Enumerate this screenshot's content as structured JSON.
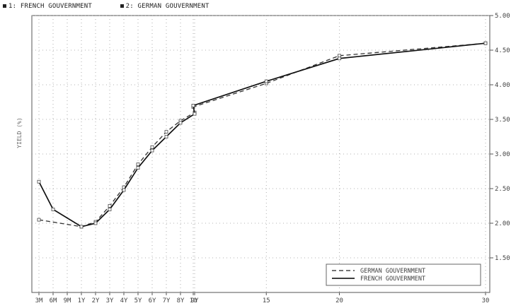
{
  "top_legend": [
    {
      "marker": "1",
      "name": "FRENCH GOUVERNMENT"
    },
    {
      "marker": "2",
      "name": "GERMAN GOUVERNMENT"
    }
  ],
  "chart_data": {
    "type": "line",
    "title": "",
    "xlabel": "",
    "ylabel": "YIELD (%)",
    "x_tick_labels": [
      "3M",
      "6M",
      "9M",
      "1Y",
      "2Y",
      "3Y",
      "4Y",
      "5Y",
      "6Y",
      "7Y",
      "8Y",
      "9Y",
      "10",
      "15",
      "20",
      "30"
    ],
    "x_tick_maturities": [
      0.25,
      0.5,
      0.75,
      1,
      2,
      3,
      4,
      5,
      6,
      7,
      8,
      9,
      10,
      15,
      20,
      30
    ],
    "y_tick_labels": [
      "5.00",
      "4.50",
      "4.00",
      "3.50",
      "3.00",
      "2.50",
      "2.00",
      "1.50"
    ],
    "ylim": [
      1.0,
      5.0
    ],
    "y_axis_position": "right",
    "grid": true,
    "legend_position": "bottom-right",
    "series": [
      {
        "name": "GERMAN GOUVERNMENT",
        "style": "dashed",
        "x": [
          0.25,
          1,
          2,
          3,
          4,
          5,
          6,
          7,
          8,
          9,
          10,
          15,
          20,
          30
        ],
        "y": [
          2.05,
          1.95,
          2.02,
          2.25,
          2.52,
          2.85,
          3.1,
          3.32,
          3.48,
          3.6,
          3.68,
          4.02,
          4.42,
          4.6
        ]
      },
      {
        "name": "FRENCH GOUVERNMENT",
        "style": "solid",
        "x": [
          0.25,
          0.5,
          1,
          2,
          3,
          4,
          5,
          6,
          7,
          8,
          9,
          10,
          15,
          20,
          30
        ],
        "y": [
          2.6,
          2.2,
          1.95,
          2.0,
          2.2,
          2.48,
          2.8,
          3.05,
          3.25,
          3.45,
          3.58,
          3.7,
          4.05,
          4.38,
          4.6
        ]
      }
    ]
  }
}
